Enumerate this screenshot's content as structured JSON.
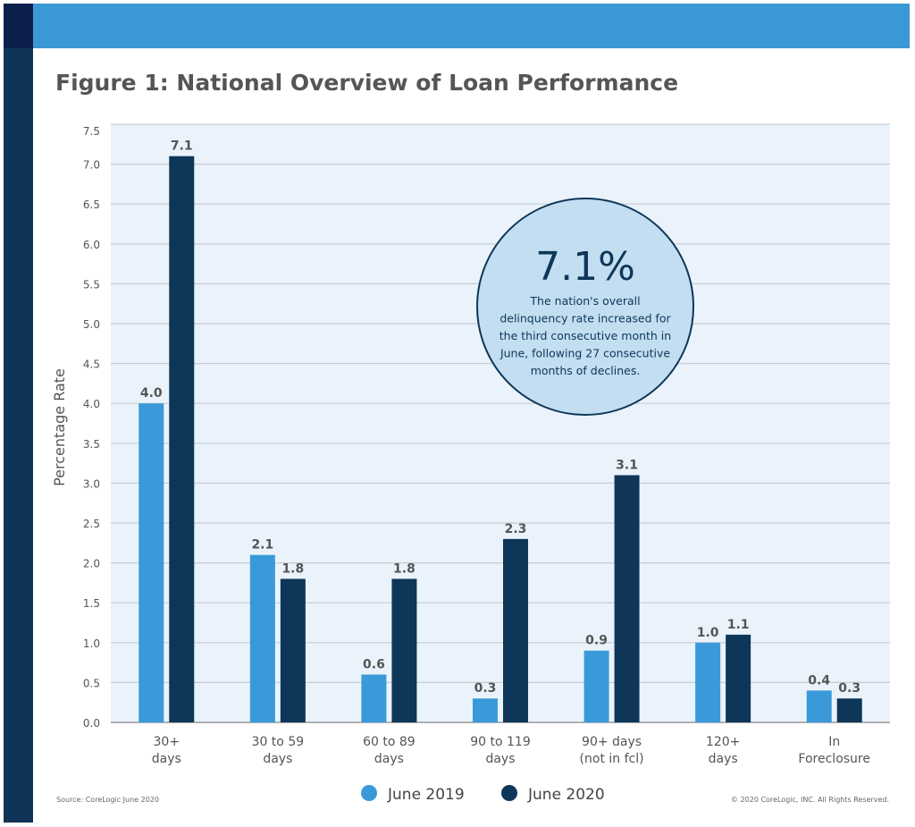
{
  "title": "Figure 1: National Overview of Loan Performance",
  "source": "Source: CoreLogic June 2020",
  "copyright": "© 2020 CoreLogic, INC. All Rights Reserved.",
  "callout": {
    "value": "7.1%",
    "lines": [
      "The nation's overall",
      "delinquency rate increased for",
      "the third consecutive month in",
      "June, following 27 consecutive",
      "months of declines."
    ]
  },
  "colors": {
    "june_2019": "#3a9ad9",
    "june_2020": "#0e3658",
    "plot_bg": "#eaf3fb",
    "header": "#3a98d4",
    "sidebar": "#0f3457"
  },
  "chart_data": {
    "type": "bar",
    "title": "Figure 1: National Overview of Loan Performance",
    "xlabel": "",
    "ylabel": "Percentage Rate",
    "ylim": [
      0,
      7.5
    ],
    "yticks": [
      "0.0",
      "0.5",
      "1.0",
      "1.5",
      "2.0",
      "2.5",
      "3.0",
      "3.5",
      "4.0",
      "4.5",
      "5.0",
      "5.5",
      "6.0",
      "6.5",
      "7.0",
      "7.5"
    ],
    "grid": true,
    "legend": "bottom",
    "categories": [
      [
        "30+",
        "days"
      ],
      [
        "30 to 59",
        "days"
      ],
      [
        "60 to 89",
        "days"
      ],
      [
        "90 to 119",
        "days"
      ],
      [
        "90+ days",
        "(not in fcl)"
      ],
      [
        "120+",
        "days"
      ],
      [
        "In",
        "Foreclosure"
      ]
    ],
    "series": [
      {
        "name": "June 2019",
        "values": [
          4.0,
          2.1,
          0.6,
          0.3,
          0.9,
          1.0,
          0.4
        ]
      },
      {
        "name": "June 2020",
        "values": [
          7.1,
          1.8,
          1.8,
          2.3,
          3.1,
          1.1,
          0.3
        ]
      }
    ]
  }
}
